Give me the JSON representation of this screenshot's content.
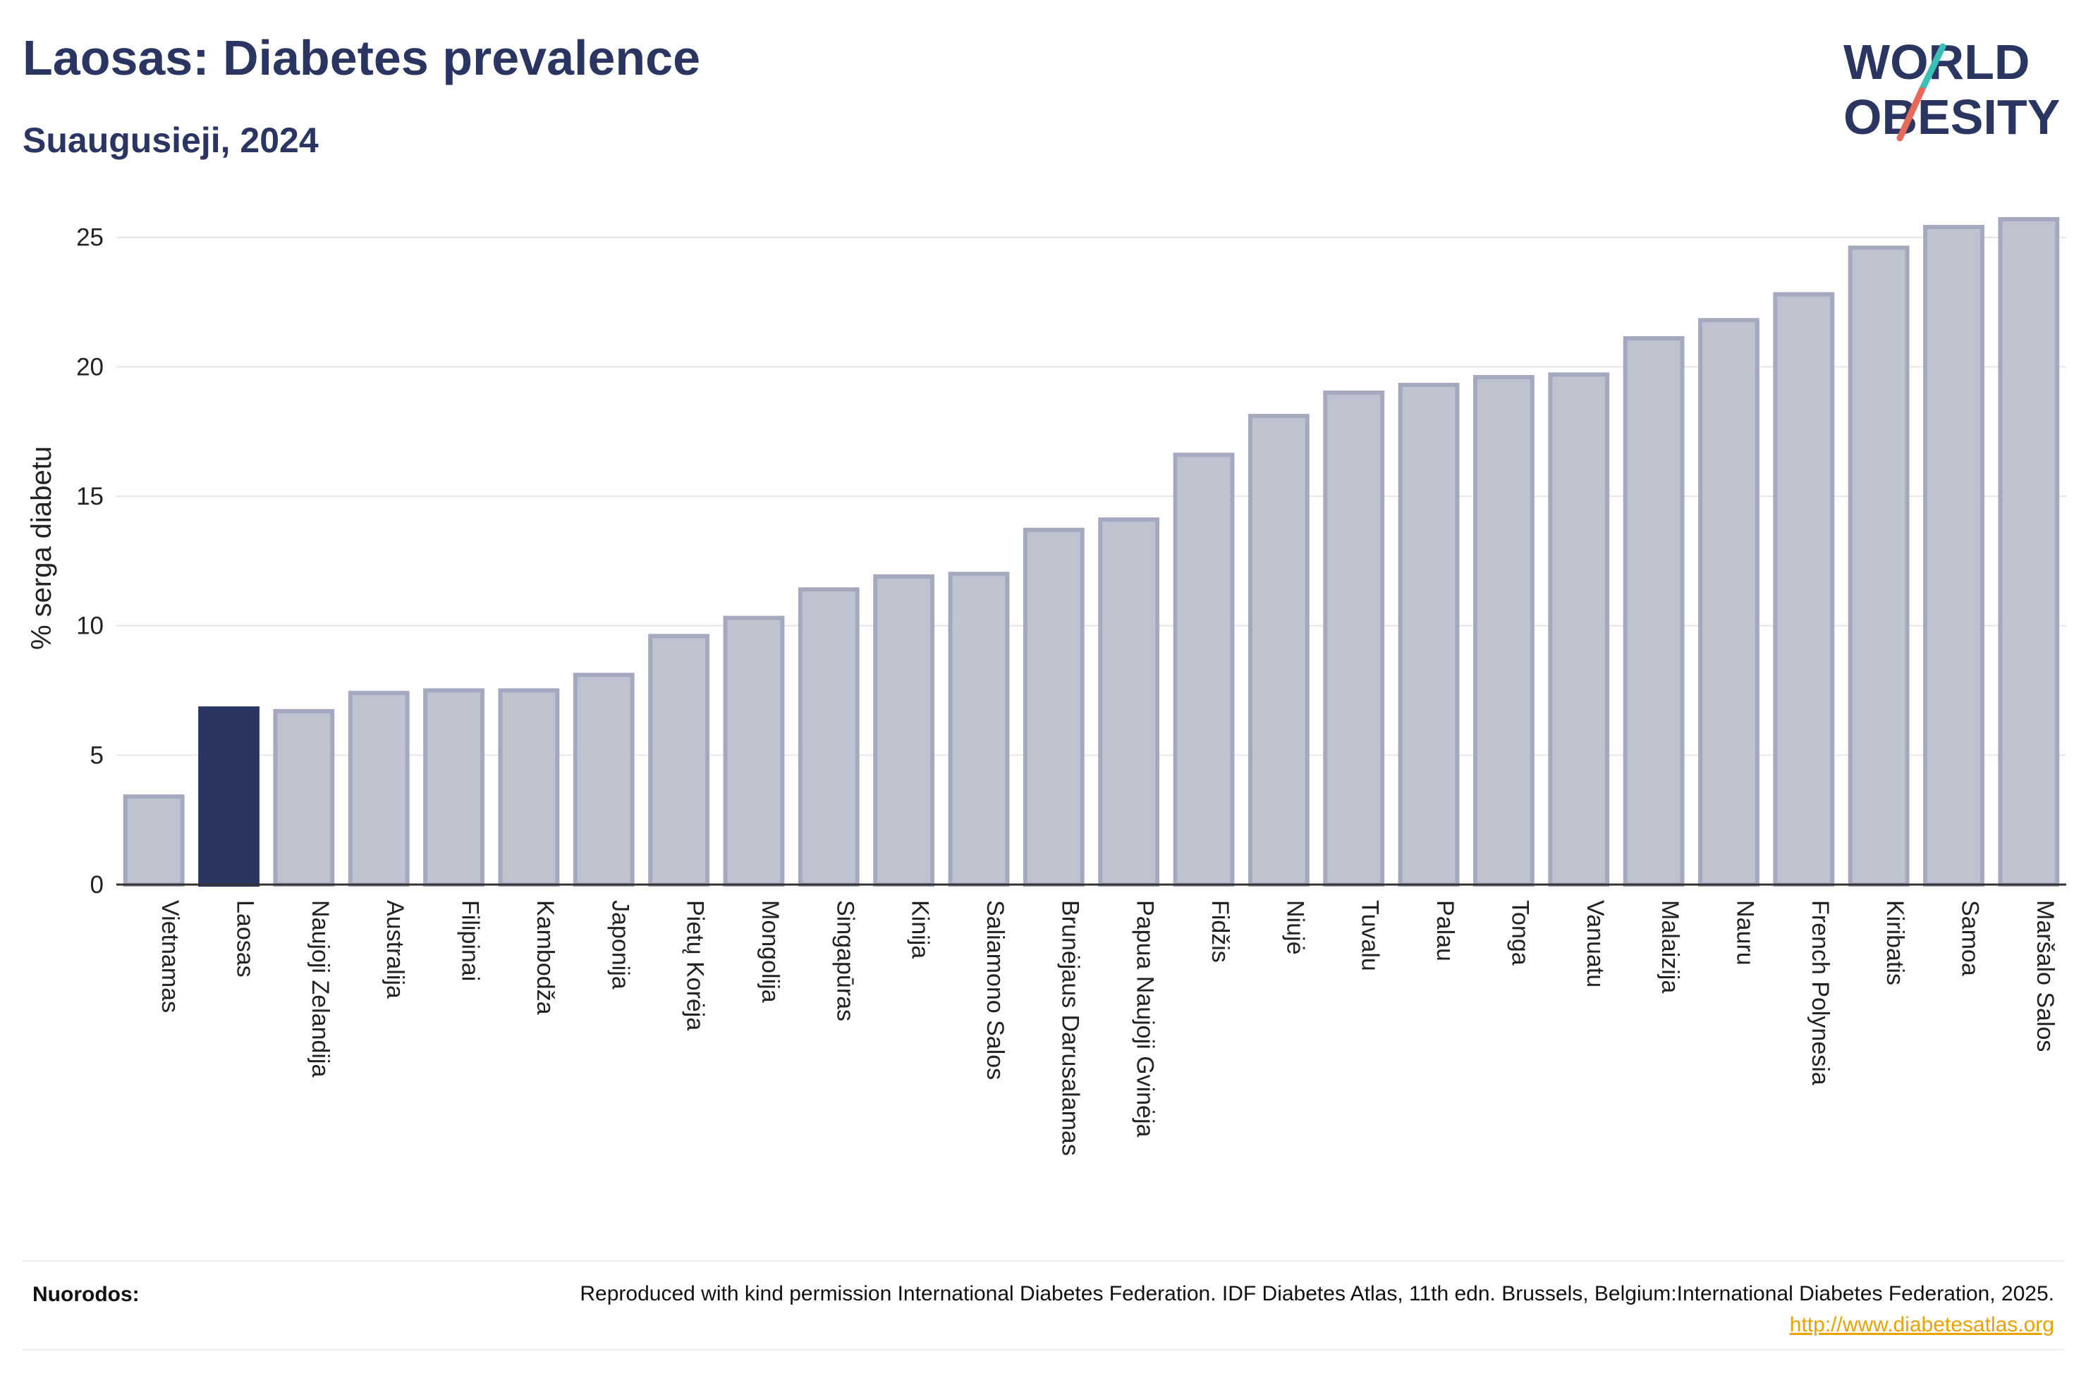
{
  "header": {
    "title": "Laosas: Diabetes prevalence",
    "subtitle": "Suaugusieji, 2024"
  },
  "logo": {
    "line1": "WORLD",
    "line2": "OBESITY",
    "colors": {
      "text": "#2b3561",
      "slash_top": "#3bbfb6",
      "slash_bottom": "#e8685a"
    }
  },
  "chart_data": {
    "type": "bar",
    "title": "Laosas: Diabetes prevalence",
    "subtitle": "Suaugusieji, 2024",
    "xlabel": "",
    "ylabel": "% serga diabetu",
    "ylim": [
      0,
      26
    ],
    "yticks": [
      0,
      5,
      10,
      15,
      20,
      25
    ],
    "grid": true,
    "highlight_category": "Laosas",
    "colors": {
      "bar": "#bfc3d0",
      "bar_border": "#a4a9bf",
      "highlight": "#2b3561",
      "grid": "#e6e6e6",
      "axis": "#333333"
    },
    "categories": [
      "Vietnamas",
      "Laosas",
      "Naujoji Zelandija",
      "Australija",
      "Filipinai",
      "Kambodža",
      "Japonija",
      "Pietų Korėja",
      "Mongolija",
      "Singapūras",
      "Kinija",
      "Saliamono Salos",
      "Brunėjaus Darusalamas",
      "Papua Naujoji Gvinėja",
      "Fidžis",
      "Niujė",
      "Tuvalu",
      "Palau",
      "Tonga",
      "Vanuatu",
      "Malaizija",
      "Nauru",
      "French Polynesia",
      "Kiribatis",
      "Samoa",
      "Maršalo Salos"
    ],
    "values": [
      3.4,
      6.8,
      6.7,
      7.4,
      7.5,
      7.5,
      8.1,
      9.6,
      10.3,
      11.4,
      11.9,
      12.0,
      13.7,
      14.1,
      16.6,
      18.1,
      19.0,
      19.3,
      19.6,
      19.7,
      21.1,
      21.8,
      22.8,
      24.6,
      25.4,
      25.7
    ]
  },
  "footer": {
    "label": "Nuorodos:",
    "text": "Reproduced with kind permission International Diabetes Federation. IDF Diabetes Atlas, 11th edn. Brussels, Belgium:International Diabetes Federation, 2025.",
    "link": "http://www.diabetesatlas.org"
  }
}
